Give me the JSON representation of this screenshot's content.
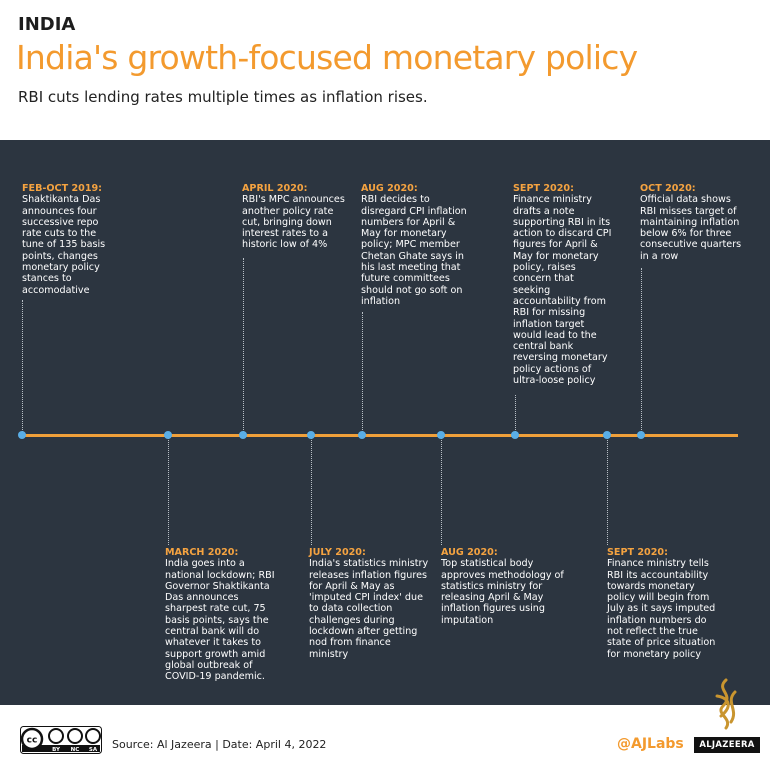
{
  "header": {
    "kicker": "INDIA",
    "title": "India's growth-focused monetary policy",
    "subtitle": "RBI cuts lending rates multiple times as inflation rises."
  },
  "events": [
    {
      "date": "FEB-OCT 2019:",
      "text": "Shaktikanta Das announces four successive repo rate cuts to the tune of 135 basis points, changes monetary policy stances to accomodative"
    },
    {
      "date": "MARCH 2020:",
      "text": "India goes into a national lockdown; RBI Governor Shaktikanta Das announces sharpest rate cut, 75 basis points, says the central bank will do whatever it takes to support growth amid global outbreak of COVID-19 pandemic."
    },
    {
      "date": "APRIL 2020:",
      "text": "RBI's MPC announces another policy rate cut, bringing down interest rates to a historic low of 4%"
    },
    {
      "date": "JULY 2020:",
      "text": "India's statistics ministry releases inflation figures for April & May as 'imputed CPI index' due to data collection challenges during lockdown after getting nod from finance ministry"
    },
    {
      "date": "AUG 2020:",
      "text": "RBI decides to disregard CPI inflation numbers for April & May for monetary policy; MPC member Chetan Ghate says in his last meeting that future committees should not go soft on inflation"
    },
    {
      "date": "AUG 2020:",
      "text": "Top statistical body approves methodology of statistics ministry for releasing April & May inflation figures using imputation"
    },
    {
      "date": "SEPT 2020:",
      "text": "Finance ministry drafts a note supporting RBI in its action to discard CPI figures for April & May for monetary policy, raises concern that seeking accountability from RBI for missing inflation target would lead to the central bank reversing monetary policy actions of ultra-loose policy"
    },
    {
      "date": "SEPT 2020:",
      "text": "Finance ministry tells RBI its accountability towards monetary policy will begin from July as it says imputed inflation numbers do not reflect the true state of price situation for monetary policy"
    },
    {
      "date": "OCT 2020:",
      "text": "Official data shows RBI misses target of maintaining inflation below 6% for three consecutive quarters in a row"
    }
  ],
  "footer": {
    "license": [
      "cc",
      "BY",
      "NC",
      "SA"
    ],
    "source": "Source: Al Jazeera | Date: April 4, 2022",
    "handle": "@AJLabs",
    "brand": "ALJAZEERA"
  }
}
